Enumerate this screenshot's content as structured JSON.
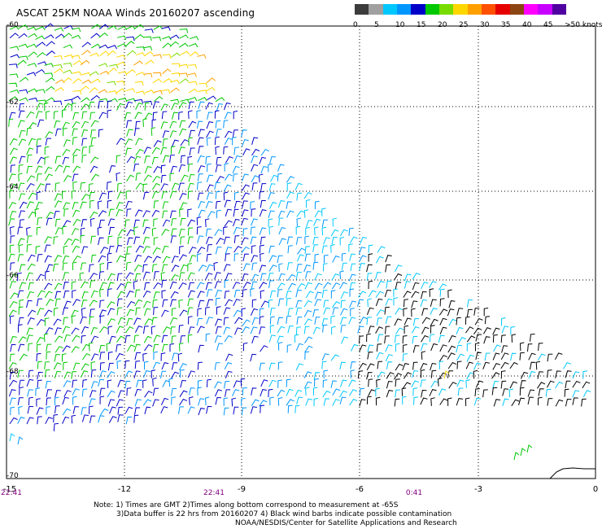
{
  "title": "ASCAT 25KM NOAA Winds 20160207 ascending",
  "colorbar": {
    "swatches": [
      "#3c3c3c",
      "#a0a0a0",
      "#00c8ff",
      "#0096ff",
      "#0000c8",
      "#00c800",
      "#78dc00",
      "#ffd700",
      "#ffa000",
      "#ff5000",
      "#e60000",
      "#8b4513",
      "#ff00ff",
      "#c800ff",
      "#5000a0"
    ],
    "labels": [
      "0",
      "5",
      "10",
      "15",
      "20",
      "25",
      "30",
      "35",
      "40",
      "45",
      ">50 knots"
    ]
  },
  "axes": {
    "lat_ticks": [
      "-60",
      "-62",
      "-64",
      "-66",
      "-68",
      "-70"
    ],
    "lon_ticks": [
      "-15",
      "-12",
      "-9",
      "-6",
      "-3",
      "0"
    ],
    "lat_range": [
      -70,
      -60
    ],
    "lon_range": [
      -15,
      0
    ],
    "grid": "dotted"
  },
  "time_labels": [
    "22:41",
    "22:41",
    "0:41"
  ],
  "notes": {
    "line1": "Note: 1) Times are GMT 2)Times along bottom correspond to measurement at -65S",
    "line2": "3)Data buffer is 22 hrs from 20160207 4) Black wind barbs indicate possible contamination",
    "line3": "NOAA/NESDIS/Center for Satellite Applications and Research"
  },
  "chart_data": {
    "type": "scatter",
    "title": "ASCAT 25KM NOAA Winds 20160207 ascending",
    "xlim": [
      -15,
      0
    ],
    "ylim": [
      -70,
      -60
    ],
    "color_scale_knots": [
      0,
      5,
      10,
      15,
      20,
      25,
      30,
      35,
      40,
      45,
      50
    ],
    "regions": [
      {
        "speed_band": "20-30",
        "color": "#ffd700"
      },
      {
        "speed_band": "15-20",
        "color": "#00c800"
      },
      {
        "speed_band": "10-15",
        "color": "#0000c8"
      },
      {
        "speed_band": "5-10",
        "color": "#00c8ff"
      },
      {
        "speed_band": "contaminated",
        "color": "#000000"
      }
    ]
  }
}
